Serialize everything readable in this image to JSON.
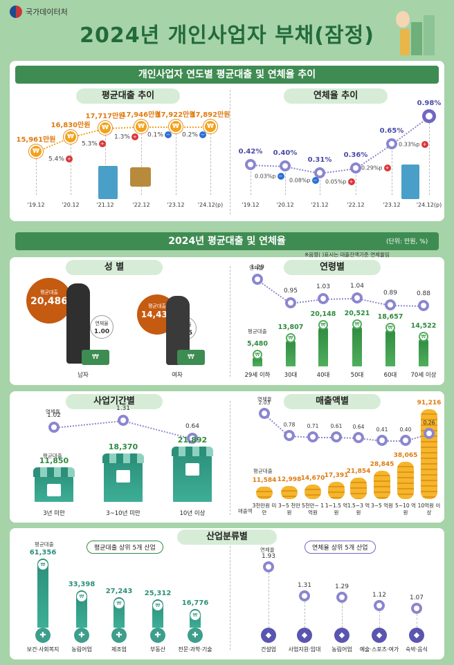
{
  "header": {
    "agency": "국가데이터처",
    "title": "2024년 개인사업자 부채(잠정)"
  },
  "section1": {
    "title": "개인사업자 연도별 평균대출 및 연체율 추이",
    "loan_title": "평균대출 추이",
    "delinq_title": "연체율 추이",
    "years": [
      "'19.12",
      "'20.12",
      "'21.12",
      "'22.12",
      "'23.12",
      "'24.12(p)"
    ],
    "loan_values": [
      "15,961만원",
      "16,830만원",
      "17,717만원",
      "17,946만원",
      "17,922만원",
      "17,892만원"
    ],
    "loan_changes": [
      "5.4%",
      "5.3%",
      "1.3%",
      "0.1%",
      "0.2%"
    ],
    "delinq_values": [
      "0.42%",
      "0.40%",
      "0.31%",
      "0.36%",
      "0.65%",
      "0.98%"
    ],
    "delinq_changes": [
      "0.03%p",
      "0.08%p",
      "0.05%p",
      "0.29%p",
      "0.33%p"
    ]
  },
  "section2": {
    "title": "2024년 평균대출 및 연체율",
    "unit": "(단위: 만원, %)",
    "note": "※음영(   )표시는 대출잔액기준 연체율임",
    "gender": {
      "title": "성 별",
      "loan_label": "평균대출",
      "delinq_label": "연체율",
      "male": {
        "label": "남자",
        "loan": "20,486",
        "delinq": "1.00"
      },
      "female": {
        "label": "여자",
        "loan": "14,431",
        "delinq": "0.95"
      }
    },
    "age": {
      "title": "연령별",
      "delinq_label": "연체율",
      "loan_label": "평균대출",
      "groups": [
        {
          "label": "29세 이하",
          "loan": "5,480",
          "delinq": "1.29"
        },
        {
          "label": "30대",
          "loan": "13,807",
          "delinq": "0.95"
        },
        {
          "label": "40대",
          "loan": "20,148",
          "delinq": "1.03"
        },
        {
          "label": "50대",
          "loan": "20,521",
          "delinq": "1.04"
        },
        {
          "label": "60대",
          "loan": "18,657",
          "delinq": "0.89"
        },
        {
          "label": "70세 이상",
          "loan": "14,522",
          "delinq": "0.88"
        }
      ]
    },
    "period": {
      "title": "사업기간별",
      "delinq_label": "연체율",
      "loan_label": "평균대출",
      "groups": [
        {
          "label": "3년 미만",
          "loan": "11,850",
          "delinq": "1.02"
        },
        {
          "label": "3~10년 미만",
          "loan": "18,370",
          "delinq": "1.31"
        },
        {
          "label": "10년 이상",
          "loan": "21,892",
          "delinq": "0.64"
        }
      ]
    },
    "sales": {
      "title": "매출액별",
      "delinq_label": "연체율",
      "loan_label": "평균대출",
      "axis_label": "매출액",
      "groups": [
        {
          "label": "3천만원 미만",
          "loan": "11,584",
          "delinq": "2.03"
        },
        {
          "label": "3~5 천만원",
          "loan": "12,998",
          "delinq": "0.78"
        },
        {
          "label": "5천만~ 1억원",
          "loan": "14,670",
          "delinq": "0.71"
        },
        {
          "label": "1~1.5 억원",
          "loan": "17,391",
          "delinq": "0.61"
        },
        {
          "label": "1.5~3 억원",
          "loan": "21,854",
          "delinq": "0.64"
        },
        {
          "label": "3~5 억원",
          "loan": "28,845",
          "delinq": "0.41"
        },
        {
          "label": "5~10 억원",
          "loan": "38,065",
          "delinq": "0.40"
        },
        {
          "label": "10억원 이상",
          "loan": "91,216",
          "delinq": "0.26"
        }
      ]
    },
    "industry": {
      "title": "산업분류별",
      "loan_pill": "평균대출 상위 5개 산업",
      "delinq_pill": "연체율 상위 5개 산업",
      "loan_label": "평균대출",
      "delinq_label": "연체율",
      "loan_top": [
        {
          "label": "보건·사회복지",
          "value": "61,356"
        },
        {
          "label": "농림어업",
          "value": "33,398"
        },
        {
          "label": "제조업",
          "value": "27,243"
        },
        {
          "label": "부동산",
          "value": "25,312"
        },
        {
          "label": "전문·과학·기술",
          "value": "16,776"
        }
      ],
      "delinq_top": [
        {
          "label": "건설업",
          "value": "1.93"
        },
        {
          "label": "사업지원·임대",
          "value": "1.31"
        },
        {
          "label": "농림어업",
          "value": "1.29"
        },
        {
          "label": "예술·스포츠·여가",
          "value": "1.12"
        },
        {
          "label": "숙박·음식",
          "value": "1.07"
        }
      ]
    }
  },
  "colors": {
    "accent": "#3f8c52",
    "loan": "#f2a21b",
    "delinq": "#6f67c4",
    "bg": "#a6d3a8"
  }
}
